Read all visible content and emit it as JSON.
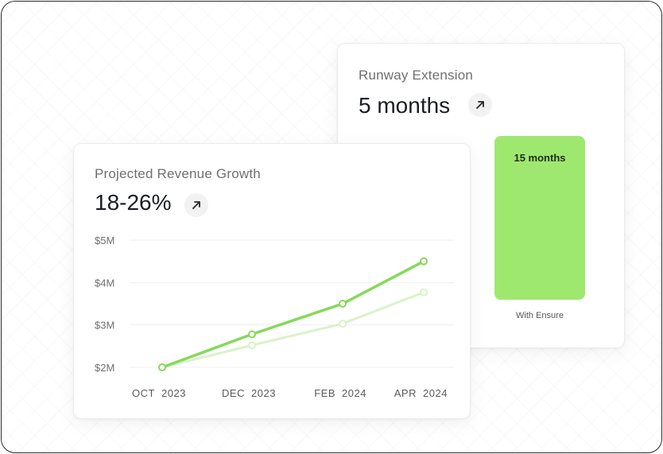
{
  "runway": {
    "title": "Runway Extension",
    "value": "5 months",
    "bar_label": "15 months",
    "caption": "With Ensure",
    "arrow_icon": "arrow-up-right-icon"
  },
  "revenue": {
    "title": "Projected Revenue Growth",
    "value": "18-26%",
    "arrow_icon": "arrow-up-right-icon"
  },
  "colors": {
    "primary_line": "#86d95a",
    "secondary_line": "#d9f3c8",
    "bar": "#9ee86f"
  },
  "chart_data": {
    "type": "line",
    "categories": [
      "OCT 2023",
      "DEC 2023",
      "FEB 2024",
      "APR 2024"
    ],
    "x_tick_labels": [
      [
        "OCT",
        "2023"
      ],
      [
        "DEC",
        "2023"
      ],
      [
        "FEB",
        "2024"
      ],
      [
        "APR",
        "2024"
      ]
    ],
    "y_ticks": [
      2,
      3,
      4,
      5
    ],
    "y_tick_labels": [
      "$2M",
      "$3M",
      "$4M",
      "$5M"
    ],
    "ylim": [
      2,
      5
    ],
    "grid": true,
    "series": [
      {
        "values": [
          2.0,
          2.78,
          3.5,
          4.5
        ]
      },
      {
        "values": [
          2.0,
          2.52,
          3.03,
          3.77
        ]
      }
    ]
  }
}
